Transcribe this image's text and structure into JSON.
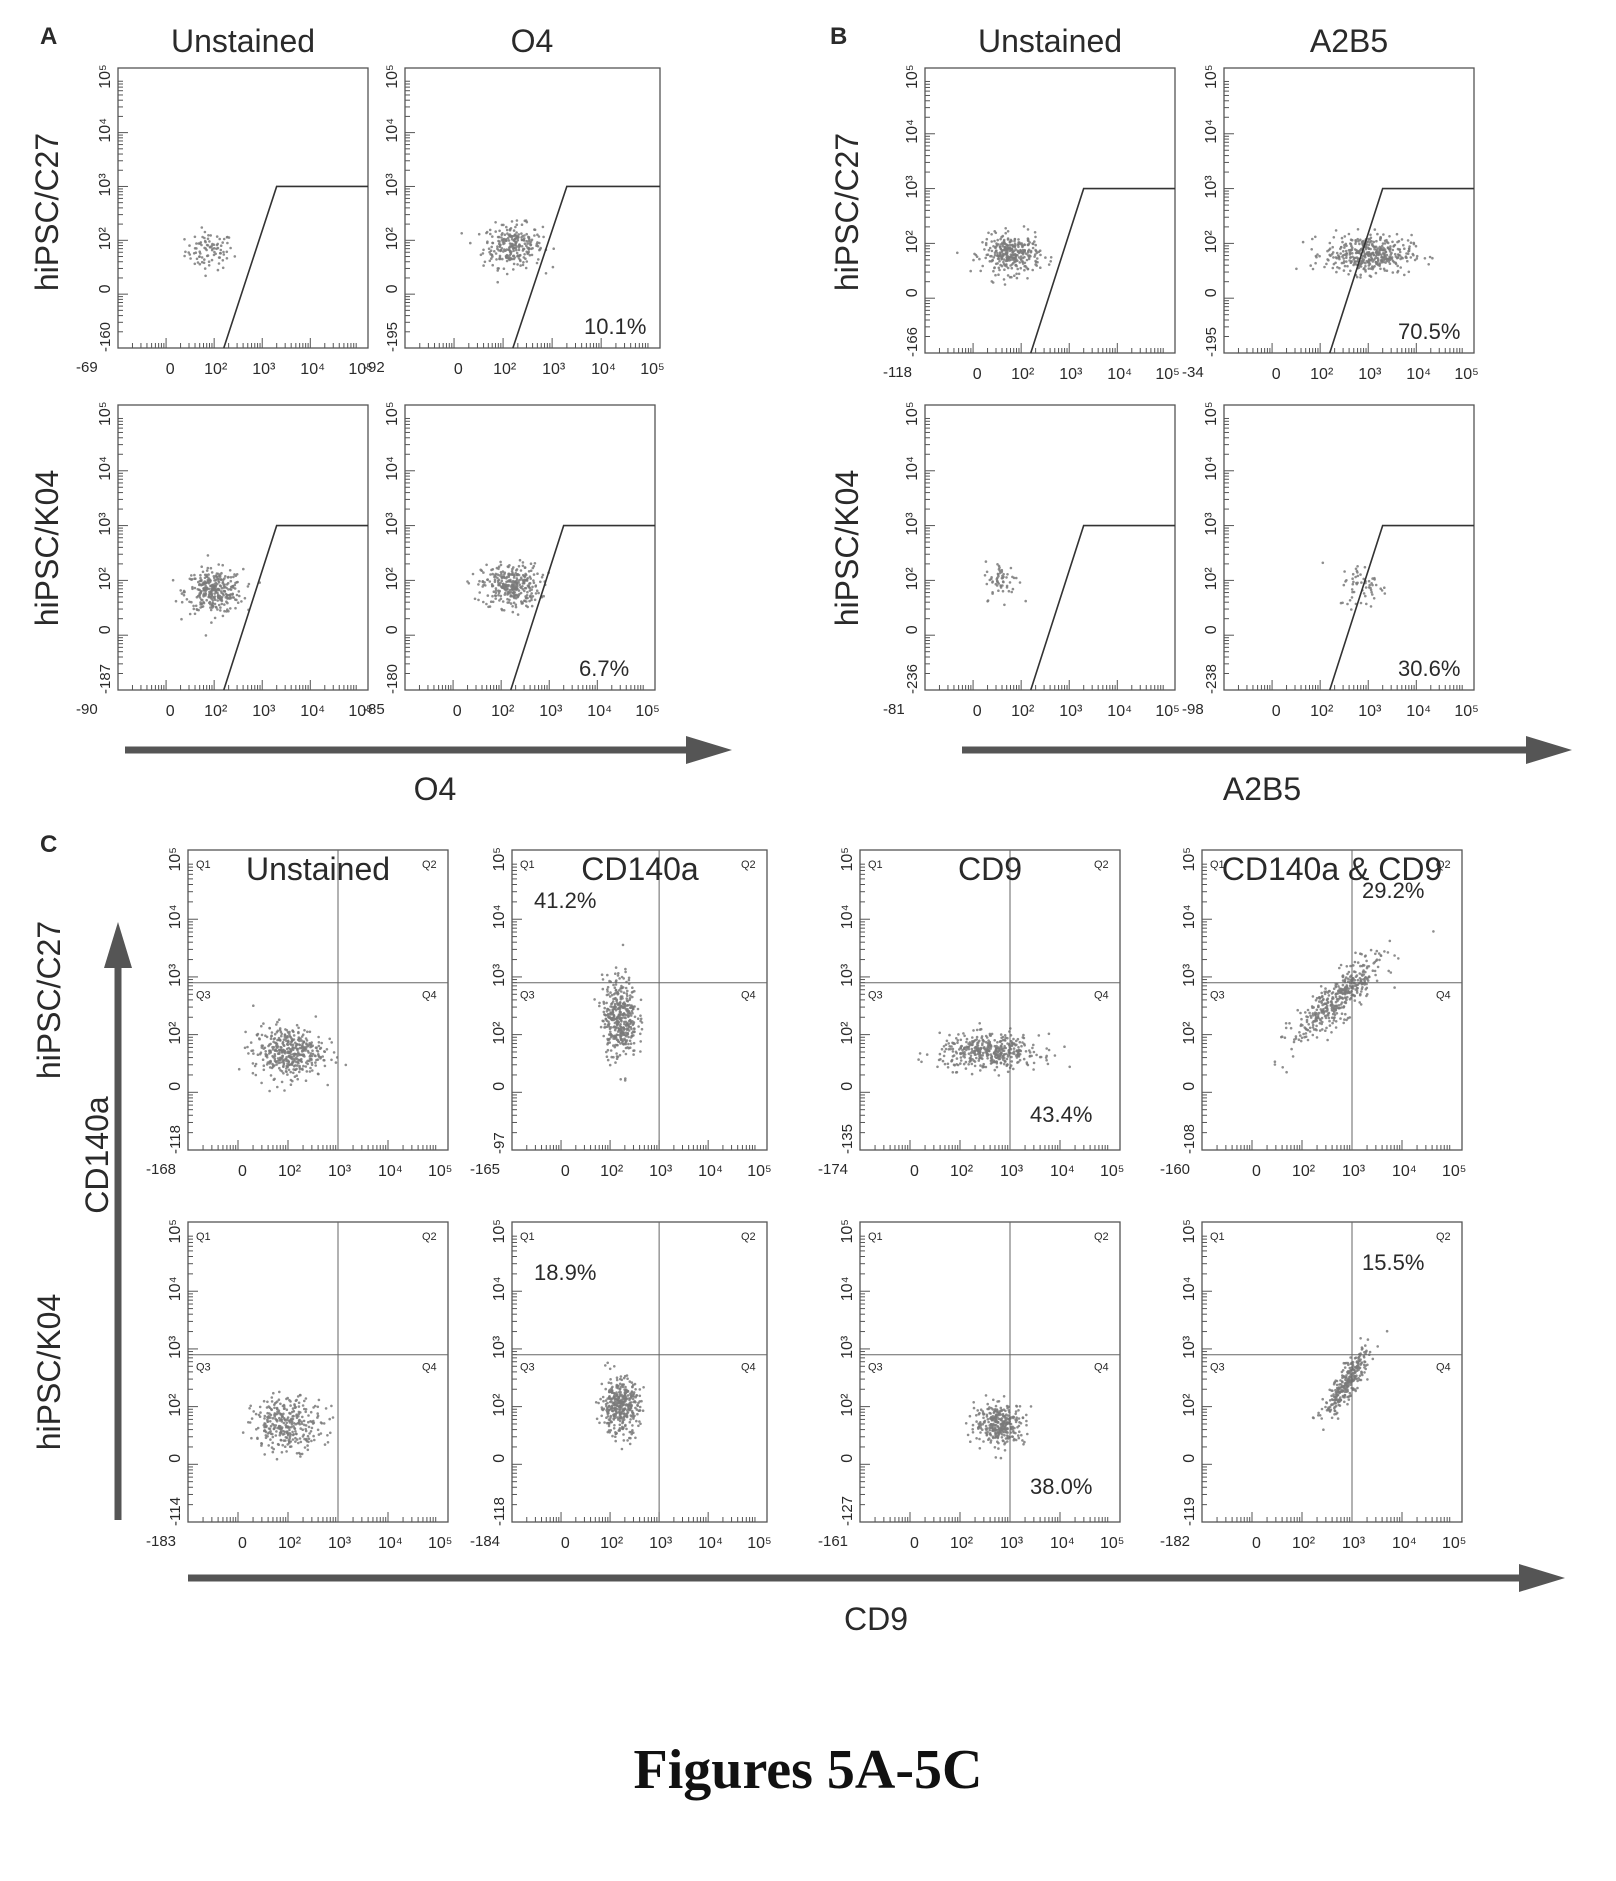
{
  "figure_caption": "Figures 5A-5C",
  "colors": {
    "ink": "#2a2a2a",
    "dots": "#7a7a7a",
    "arrow": "#555555",
    "frame": "#555555"
  },
  "panels": [
    {
      "letter": "A",
      "columns": [
        "Unstained",
        "O4"
      ],
      "rows": [
        "hiPSC/C27",
        "hiPSC/K04"
      ],
      "x_marker": "O4"
    },
    {
      "letter": "B",
      "columns": [
        "Unstained",
        "A2B5"
      ],
      "rows": [
        "hiPSC/C27",
        "hiPSC/K04"
      ],
      "x_marker": "A2B5"
    },
    {
      "letter": "C",
      "columns": [
        "Unstained",
        "CD140a",
        "CD9",
        "CD140a & CD9"
      ],
      "rows": [
        "hiPSC/C27",
        "hiPSC/K04"
      ],
      "x_marker": "CD9",
      "y_marker": "CD140a"
    }
  ],
  "chart_data": [
    {
      "type": "scatter",
      "panel": "A",
      "column": "Unstained",
      "row": "hiPSC/C27",
      "xmin_label": "-69",
      "ymin_label": "-160",
      "gate": "polygon",
      "population_percent": null,
      "cluster": {
        "log_x": 1.9,
        "log_y": 1.8,
        "spread_x": 0.5,
        "spread_y": 0.35,
        "count": 90
      }
    },
    {
      "type": "scatter",
      "panel": "A",
      "column": "O4",
      "row": "hiPSC/C27",
      "xmin_label": "-92",
      "ymin_label": "-195",
      "gate": "polygon",
      "population_percent": 10.1,
      "cluster": {
        "log_x": 2.2,
        "log_y": 1.9,
        "spread_x": 0.6,
        "spread_y": 0.4,
        "count": 260
      }
    },
    {
      "type": "scatter",
      "panel": "A",
      "column": "Unstained",
      "row": "hiPSC/K04",
      "xmin_label": "-90",
      "ymin_label": "-187",
      "gate": "polygon",
      "population_percent": null,
      "cluster": {
        "log_x": 2.0,
        "log_y": 1.8,
        "spread_x": 0.6,
        "spread_y": 0.4,
        "count": 320
      }
    },
    {
      "type": "scatter",
      "panel": "A",
      "column": "O4",
      "row": "hiPSC/K04",
      "xmin_label": "-85",
      "ymin_label": "-180",
      "gate": "polygon",
      "population_percent": 6.7,
      "cluster": {
        "log_x": 2.2,
        "log_y": 1.9,
        "spread_x": 0.6,
        "spread_y": 0.4,
        "count": 320
      }
    },
    {
      "type": "scatter",
      "panel": "B",
      "column": "Unstained",
      "row": "hiPSC/C27",
      "xmin_label": "-118",
      "ymin_label": "-166",
      "gate": "polygon",
      "population_percent": null,
      "cluster": {
        "log_x": 1.8,
        "log_y": 1.8,
        "spread_x": 0.6,
        "spread_y": 0.35,
        "count": 320
      }
    },
    {
      "type": "scatter",
      "panel": "B",
      "column": "A2B5",
      "row": "hiPSC/C27",
      "xmin_label": "-34",
      "ymin_label": "-195",
      "gate": "polygon",
      "population_percent": 70.5,
      "cluster": {
        "log_x": 3.0,
        "log_y": 1.8,
        "spread_x": 0.9,
        "spread_y": 0.35,
        "count": 420
      }
    },
    {
      "type": "scatter",
      "panel": "B",
      "column": "Unstained",
      "row": "hiPSC/K04",
      "xmin_label": "-81",
      "ymin_label": "-236",
      "gate": "polygon",
      "population_percent": null,
      "cluster": {
        "log_x": 1.6,
        "log_y": 2.0,
        "spread_x": 0.35,
        "spread_y": 0.35,
        "count": 60
      }
    },
    {
      "type": "scatter",
      "panel": "B",
      "column": "A2B5",
      "row": "hiPSC/K04",
      "xmin_label": "-98",
      "ymin_label": "-238",
      "gate": "polygon",
      "population_percent": 30.6,
      "cluster": {
        "log_x": 2.9,
        "log_y": 1.9,
        "spread_x": 0.5,
        "spread_y": 0.4,
        "count": 60
      }
    },
    {
      "type": "scatter",
      "panel": "C",
      "column": "Unstained",
      "row": "hiPSC/C27",
      "xmin_label": "-168",
      "ymin_label": "-118",
      "gate": "quadrant",
      "quadrant_labels": [
        "Q1",
        "Q2",
        "Q3",
        "Q4"
      ],
      "quadrant_percent": null,
      "cluster": {
        "log_x": 2.0,
        "log_y": 1.7,
        "spread_x": 0.7,
        "spread_y": 0.45,
        "count": 420
      }
    },
    {
      "type": "scatter",
      "panel": "C",
      "column": "CD140a",
      "row": "hiPSC/C27",
      "xmin_label": "-165",
      "ymin_label": "-97",
      "gate": "quadrant",
      "quadrant_labels": [
        "Q1",
        "Q2",
        "Q3",
        "Q4"
      ],
      "quadrant_percent": {
        "quadrant": "Q1",
        "value": "41.2%"
      },
      "cluster": {
        "log_x": 2.2,
        "log_y": 2.3,
        "spread_x": 0.35,
        "spread_y": 0.7,
        "count": 420
      }
    },
    {
      "type": "scatter",
      "panel": "C",
      "column": "CD9",
      "row": "hiPSC/C27",
      "xmin_label": "-174",
      "ymin_label": "-135",
      "gate": "quadrant",
      "quadrant_labels": [
        "Q1",
        "Q2",
        "Q3",
        "Q4"
      ],
      "quadrant_percent": {
        "quadrant": "Q4",
        "value": "43.4%"
      },
      "cluster": {
        "log_x": 2.6,
        "log_y": 1.7,
        "spread_x": 1.0,
        "spread_y": 0.3,
        "count": 420
      }
    },
    {
      "type": "scatter",
      "panel": "C",
      "column": "CD140a & CD9",
      "row": "hiPSC/C27",
      "xmin_label": "-160",
      "ymin_label": "-108",
      "gate": "quadrant",
      "quadrant_labels": [
        "Q1",
        "Q2",
        "Q3",
        "Q4"
      ],
      "quadrant_percent": {
        "quadrant": "Q2",
        "value": "29.2%"
      },
      "cluster": {
        "log_x": 2.7,
        "log_y": 2.6,
        "spread_x": 0.9,
        "spread_y": 0.8,
        "count": 420,
        "diagonal": true
      }
    },
    {
      "type": "scatter",
      "panel": "C",
      "column": "Unstained",
      "row": "hiPSC/K04",
      "xmin_label": "-183",
      "ymin_label": "-114",
      "gate": "quadrant",
      "quadrant_labels": [
        "Q1",
        "Q2",
        "Q3",
        "Q4"
      ],
      "quadrant_percent": null,
      "cluster": {
        "log_x": 2.0,
        "log_y": 1.7,
        "spread_x": 0.7,
        "spread_y": 0.45,
        "count": 320
      }
    },
    {
      "type": "scatter",
      "panel": "C",
      "column": "CD140a",
      "row": "hiPSC/K04",
      "xmin_label": "-184",
      "ymin_label": "-118",
      "gate": "quadrant",
      "quadrant_labels": [
        "Q1",
        "Q2",
        "Q3",
        "Q4"
      ],
      "quadrant_percent": {
        "quadrant": "Q1",
        "value": "18.9%"
      },
      "cluster": {
        "log_x": 2.2,
        "log_y": 2.0,
        "spread_x": 0.4,
        "spread_y": 0.5,
        "count": 380
      }
    },
    {
      "type": "scatter",
      "panel": "C",
      "column": "CD9",
      "row": "hiPSC/K04",
      "xmin_label": "-161",
      "ymin_label": "-127",
      "gate": "quadrant",
      "quadrant_labels": [
        "Q1",
        "Q2",
        "Q3",
        "Q4"
      ],
      "quadrant_percent": {
        "quadrant": "Q4",
        "value": "38.0%"
      },
      "cluster": {
        "log_x": 2.8,
        "log_y": 1.7,
        "spread_x": 0.5,
        "spread_y": 0.35,
        "count": 320
      }
    },
    {
      "type": "scatter",
      "panel": "C",
      "column": "CD140a & CD9",
      "row": "hiPSC/K04",
      "xmin_label": "-182",
      "ymin_label": "-119",
      "gate": "quadrant",
      "quadrant_labels": [
        "Q1",
        "Q2",
        "Q3",
        "Q4"
      ],
      "quadrant_percent": {
        "quadrant": "Q2",
        "value": "15.5%"
      },
      "cluster": {
        "log_x": 2.9,
        "log_y": 2.4,
        "spread_x": 0.45,
        "spread_y": 0.6,
        "count": 300,
        "diagonal": true
      }
    }
  ],
  "axis_tick_labels": {
    "x": [
      "0",
      "10²",
      "10³",
      "10⁴",
      "10⁵"
    ],
    "y": [
      "0",
      "10²",
      "10³",
      "10⁴",
      "10⁵"
    ]
  }
}
